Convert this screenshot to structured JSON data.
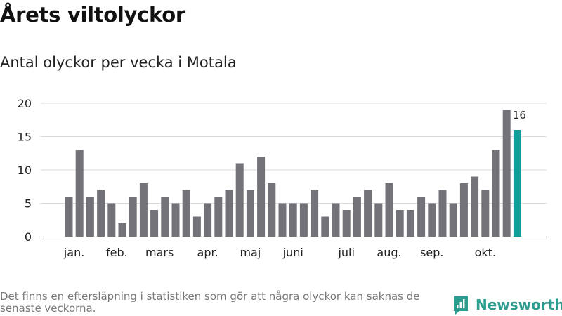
{
  "header": {
    "title": "Årets viltolyckor",
    "subtitle": "Antal olyckor per vecka i Motala"
  },
  "footer": {
    "note": "Det finns en eftersläpning i statistiken som gör att några olyckor kan saknas de senaste veckorna.",
    "brand": "Newsworthy"
  },
  "colors": {
    "bar": "#737278",
    "highlight": "#149e9a",
    "grid": "#d9d9d9",
    "brand": "#2a9d8f"
  },
  "chart_data": {
    "type": "bar",
    "title": "Årets viltolyckor",
    "subtitle": "Antal olyckor per vecka i Motala",
    "xlabel": "",
    "ylabel": "",
    "ylim": [
      0,
      20
    ],
    "yticks": [
      0,
      5,
      10,
      15,
      20
    ],
    "grid": true,
    "legend": "none",
    "x": [
      1,
      2,
      3,
      4,
      5,
      6,
      7,
      8,
      9,
      10,
      11,
      12,
      13,
      14,
      15,
      16,
      17,
      18,
      19,
      20,
      21,
      22,
      23,
      24,
      25,
      26,
      27,
      28,
      29,
      30,
      31,
      32,
      33,
      34,
      35,
      36,
      37,
      38,
      39,
      40,
      41,
      42,
      43
    ],
    "values": [
      6,
      13,
      6,
      7,
      5,
      2,
      6,
      8,
      4,
      6,
      5,
      7,
      3,
      5,
      6,
      7,
      11,
      7,
      12,
      8,
      5,
      5,
      5,
      7,
      3,
      5,
      4,
      6,
      7,
      5,
      8,
      4,
      4,
      6,
      5,
      7,
      5,
      8,
      9,
      7,
      13,
      19,
      16
    ],
    "month_labels": [
      {
        "label": "jan.",
        "week": 1.5
      },
      {
        "label": "feb.",
        "week": 5.5
      },
      {
        "label": "mars",
        "week": 9.5
      },
      {
        "label": "apr.",
        "week": 14
      },
      {
        "label": "maj",
        "week": 18
      },
      {
        "label": "juni",
        "week": 22
      },
      {
        "label": "juli",
        "week": 27
      },
      {
        "label": "aug.",
        "week": 31
      },
      {
        "label": "sep.",
        "week": 35
      },
      {
        "label": "okt.",
        "week": 40
      }
    ],
    "annotation": {
      "week": 43,
      "label": "16"
    },
    "highlight_week": 43
  }
}
